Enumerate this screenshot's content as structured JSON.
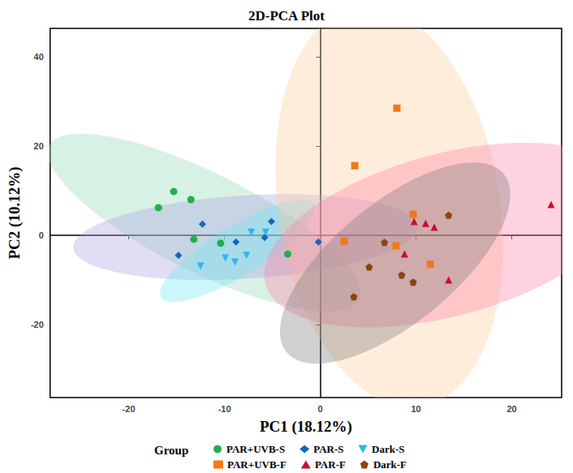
{
  "chart_data": {
    "type": "scatter",
    "title": "2D-PCA Plot",
    "x_label": "PC1 (18.12%)",
    "y_label": "PC2 (10.12%)",
    "xlim": [
      -28.2,
      25.2
    ],
    "ylim": [
      -36.4,
      46.4
    ],
    "xticks": [
      -20,
      -10,
      0,
      10,
      20
    ],
    "yticks": [
      -20,
      0,
      20,
      40
    ],
    "grid": false,
    "legend": "bottom",
    "legend_title": "Group",
    "series": [
      {
        "name": "PAR+UVB-S",
        "color": "#22b04b",
        "marker": "circle",
        "x": [
          -16.9,
          -15.3,
          -13.5,
          -13.2,
          -10.4,
          -3.4
        ],
        "values": [
          6.2,
          9.8,
          8.0,
          -0.9,
          -1.8,
          -4.2
        ]
      },
      {
        "name": "PAR-S",
        "color": "#1565c0",
        "marker": "diamond",
        "x": [
          -12.3,
          -14.8,
          -8.8,
          -5.8,
          -5.1,
          -0.2
        ],
        "values": [
          2.5,
          -4.5,
          -1.5,
          -0.5,
          3.1,
          -1.5
        ]
      },
      {
        "name": "Dark-S",
        "color": "#29b6f6",
        "marker": "triangle-down",
        "x": [
          -12.5,
          -9.9,
          -8.9,
          -7.7,
          -7.2,
          -5.7
        ],
        "values": [
          -6.9,
          -5.1,
          -6.0,
          -4.5,
          0.7,
          0.7
        ]
      },
      {
        "name": "PAR+UVB-F",
        "color": "#f07a1a",
        "marker": "square",
        "x": [
          8.0,
          3.6,
          9.7,
          2.5,
          7.9,
          11.5
        ],
        "values": [
          28.5,
          15.6,
          4.7,
          -1.3,
          -2.4,
          -6.5
        ]
      },
      {
        "name": "PAR-F",
        "color": "#c8102e",
        "marker": "triangle",
        "x": [
          9.8,
          11.0,
          11.9,
          8.8,
          13.4,
          24.1
        ],
        "values": [
          3.1,
          2.7,
          1.8,
          -4.2,
          -10.0,
          6.9
        ]
      },
      {
        "name": "Dark-F",
        "color": "#8b4513",
        "marker": "pentagon",
        "x": [
          13.4,
          6.7,
          5.1,
          8.5,
          9.7,
          3.5
        ],
        "values": [
          4.5,
          -1.6,
          -7.1,
          -8.9,
          -10.5,
          -13.8
        ]
      }
    ]
  }
}
